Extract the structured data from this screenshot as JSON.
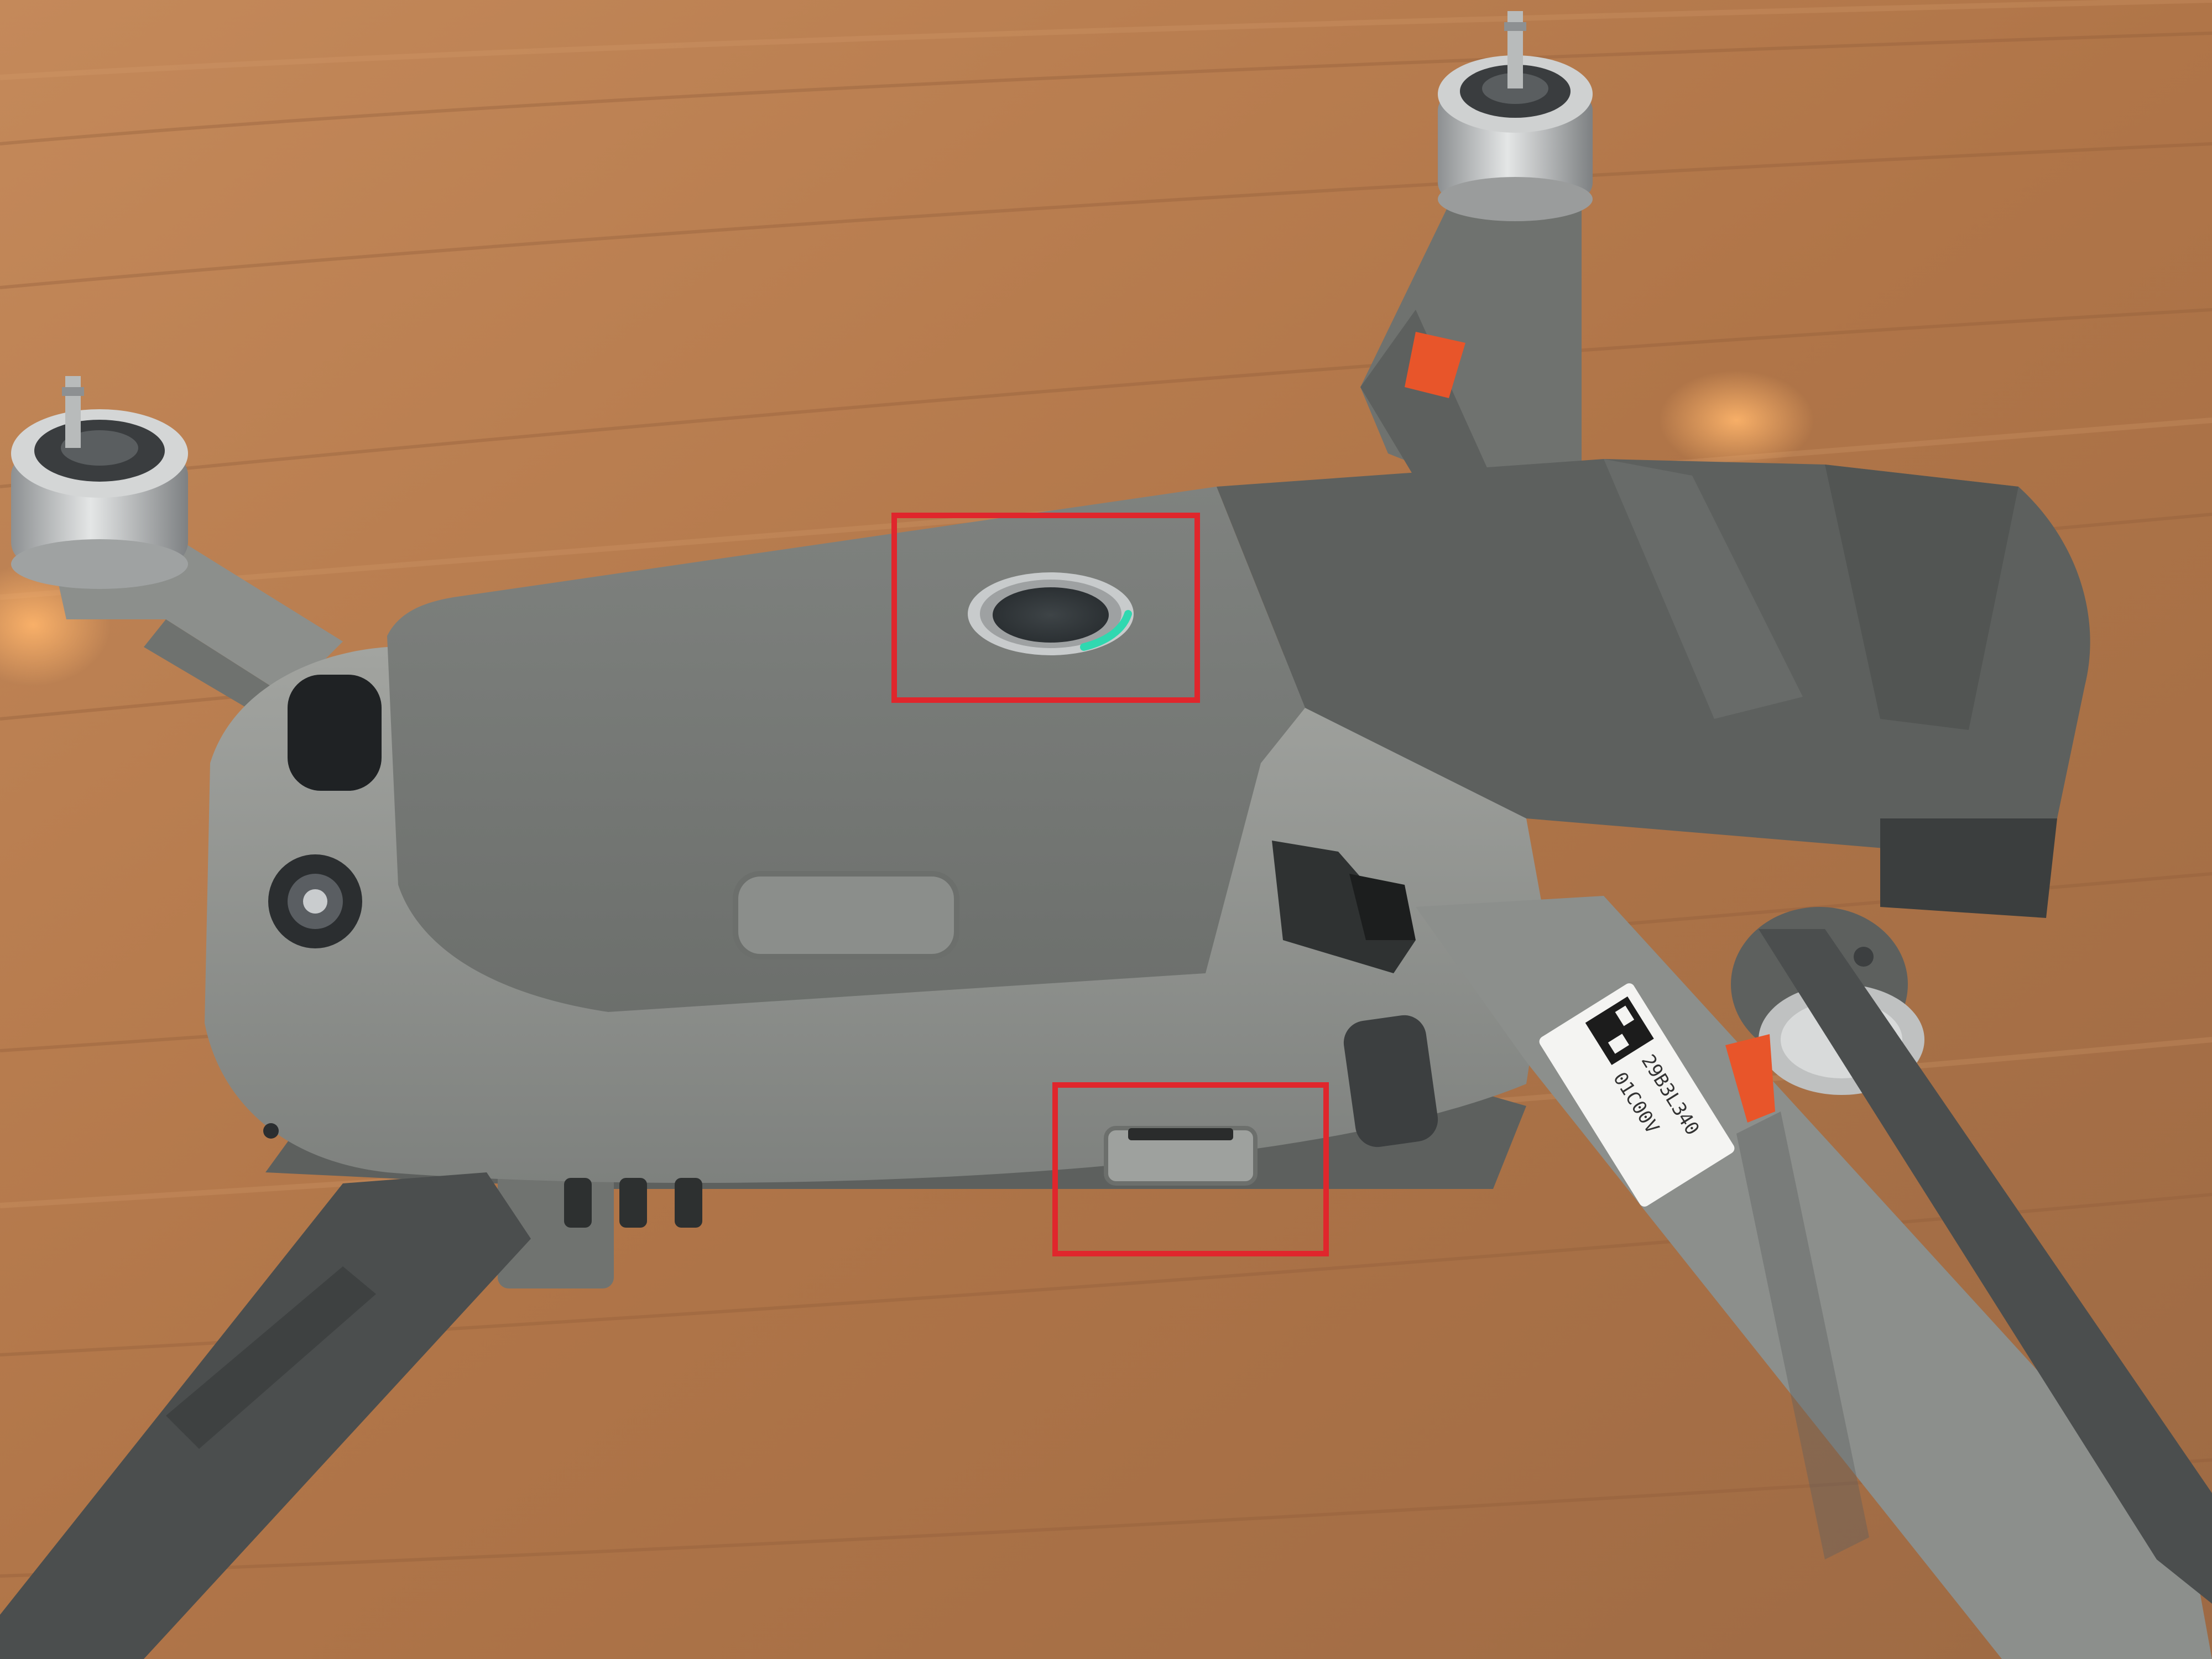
{
  "photo": {
    "subject": "drone",
    "colors": {
      "table": "#b27a4c",
      "body": "#8f918d",
      "body_dark": "#5d605e",
      "arm_dark": "#4b4e4e",
      "accent_orange": "#e8552a",
      "led_green": "#30d8b0",
      "highlight_box": "#e0262c"
    }
  },
  "sticker": {
    "line1": "29B3L340",
    "line2": "01C00V"
  },
  "highlights": [
    {
      "target": "power-button"
    },
    {
      "target": "microsd-card-slot"
    }
  ]
}
